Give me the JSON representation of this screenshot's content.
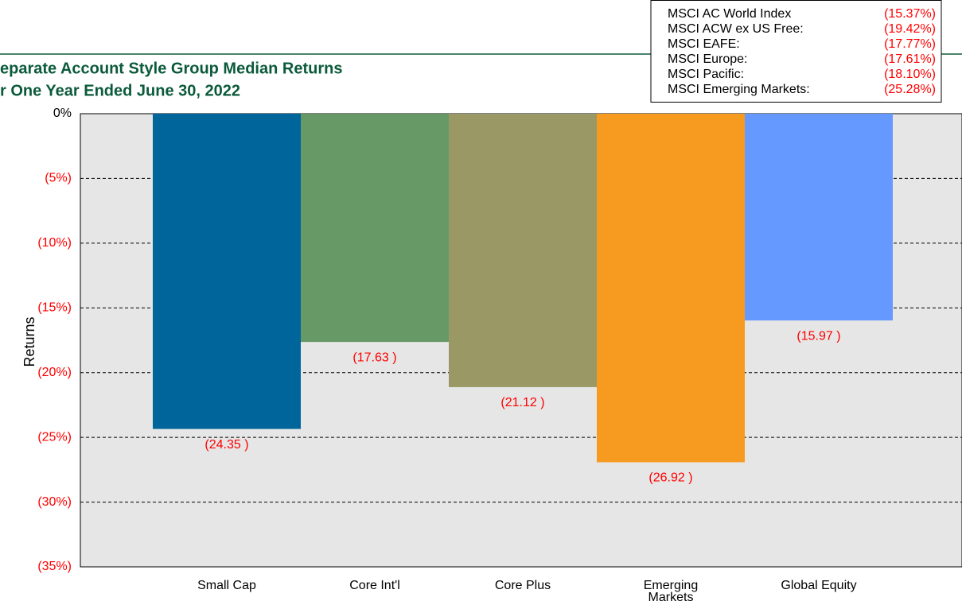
{
  "chart_data": {
    "type": "bar",
    "title": "eparate Account Style Group Median Returns",
    "subtitle": "r One Year Ended June 30, 2022",
    "y_label": "Returns",
    "categories": [
      "Small Cap",
      "Core Int'l",
      "Core Plus",
      "Emerging\nMarkets",
      "Global Equity"
    ],
    "values": [
      -24.35,
      -17.63,
      -21.12,
      -26.92,
      -15.97
    ],
    "value_labels": [
      "(24.35 )",
      "(17.63 )",
      "(21.12 )",
      "(26.92 )",
      "(15.97 )"
    ],
    "colors": [
      "#00659a",
      "#679966",
      "#9a9966",
      "#f79a20",
      "#6699ff"
    ],
    "ylim": [
      -35,
      0
    ],
    "yticks": [
      {
        "value": 0,
        "label": "0%"
      },
      {
        "value": -5,
        "label": "(5%)"
      },
      {
        "value": -10,
        "label": "(10%)"
      },
      {
        "value": -15,
        "label": "(15%)"
      },
      {
        "value": -20,
        "label": "(20%)"
      },
      {
        "value": -25,
        "label": "(25%)"
      },
      {
        "value": -30,
        "label": "(30%)"
      },
      {
        "value": -35,
        "label": "(35%)"
      }
    ],
    "grid": true,
    "index_returns": [
      {
        "name": "MSCI AC World Index",
        "value": "(15.37%)"
      },
      {
        "name": "MSCI ACW ex US Free:",
        "value": "(19.42%)"
      },
      {
        "name": "MSCI EAFE:",
        "value": "(17.77%)"
      },
      {
        "name": "MSCI Europe:",
        "value": "(17.61%)"
      },
      {
        "name": "MSCI Pacific:",
        "value": "(18.10%)"
      },
      {
        "name": "MSCI Emerging Markets:",
        "value": "(25.28%)"
      }
    ]
  }
}
